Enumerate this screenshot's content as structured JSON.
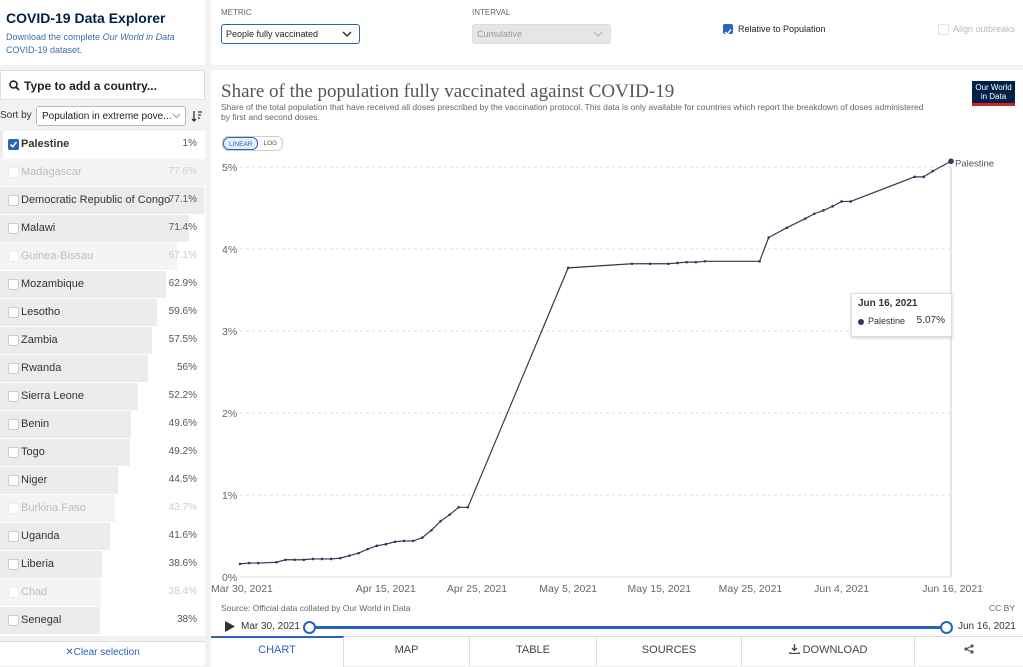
{
  "header": {
    "title": "COVID-19 Data Explorer",
    "subtitle_before": "Download the complete ",
    "subtitle_em": "Our World in Data",
    "subtitle_after": " COVID-19 dataset."
  },
  "search_placeholder": "Type to add a country...",
  "sort": {
    "label": "Sort by",
    "value": "Population in extreme pove..."
  },
  "countries": [
    {
      "name": "Palestine",
      "value": 1,
      "label": "1%",
      "checked": true,
      "available": true
    },
    {
      "name": "Madagascar",
      "value": 77.6,
      "label": "77.6%",
      "checked": false,
      "available": false
    },
    {
      "name": "Democratic Republic of Congo",
      "value": 77.1,
      "label": "77.1%",
      "checked": false,
      "available": true
    },
    {
      "name": "Malawi",
      "value": 71.4,
      "label": "71.4%",
      "checked": false,
      "available": true
    },
    {
      "name": "Guinea-Bissau",
      "value": 67.1,
      "label": "67.1%",
      "checked": false,
      "available": false
    },
    {
      "name": "Mozambique",
      "value": 62.9,
      "label": "62.9%",
      "checked": false,
      "available": true
    },
    {
      "name": "Lesotho",
      "value": 59.6,
      "label": "59.6%",
      "checked": false,
      "available": true
    },
    {
      "name": "Zambia",
      "value": 57.5,
      "label": "57.5%",
      "checked": false,
      "available": true
    },
    {
      "name": "Rwanda",
      "value": 56,
      "label": "56%",
      "checked": false,
      "available": true
    },
    {
      "name": "Sierra Leone",
      "value": 52.2,
      "label": "52.2%",
      "checked": false,
      "available": true
    },
    {
      "name": "Benin",
      "value": 49.6,
      "label": "49.6%",
      "checked": false,
      "available": true
    },
    {
      "name": "Togo",
      "value": 49.2,
      "label": "49.2%",
      "checked": false,
      "available": true
    },
    {
      "name": "Niger",
      "value": 44.5,
      "label": "44.5%",
      "checked": false,
      "available": true
    },
    {
      "name": "Burkina Faso",
      "value": 43.7,
      "label": "43.7%",
      "checked": false,
      "available": false
    },
    {
      "name": "Uganda",
      "value": 41.6,
      "label": "41.6%",
      "checked": false,
      "available": true
    },
    {
      "name": "Liberia",
      "value": 38.6,
      "label": "38.6%",
      "checked": false,
      "available": true
    },
    {
      "name": "Chad",
      "value": 38.4,
      "label": "38.4%",
      "checked": false,
      "available": false
    },
    {
      "name": "Senegal",
      "value": 38,
      "label": "38%",
      "checked": false,
      "available": true
    }
  ],
  "clear_selection": "Clear selection",
  "controls": {
    "metric_label": "METRIC",
    "metric_value": "People fully vaccinated",
    "interval_label": "INTERVAL",
    "interval_value": "Cumulative",
    "relative_label": "Relative to Population",
    "relative_checked": true,
    "align_label": "Align outbreaks"
  },
  "tabs": [
    "CHART",
    "MAP",
    "TABLE",
    "SOURCES",
    "DOWNLOAD"
  ],
  "chart_data": {
    "type": "line",
    "title": "Share of the population fully vaccinated against COVID-19",
    "subtitle": "Share of the total population that have received all doses prescribed by the vaccination protocol. This data is only available for countries which report the breakdown of doses administered by first and second doses.",
    "logo": [
      "Our World",
      "in Data"
    ],
    "scale_options": [
      "LINEAR",
      "LOG"
    ],
    "log_scale": false,
    "grid": true,
    "x": [
      "2021-03-30",
      "2021-03-31",
      "2021-04-01",
      "2021-04-03",
      "2021-04-04",
      "2021-04-05",
      "2021-04-06",
      "2021-04-07",
      "2021-04-08",
      "2021-04-09",
      "2021-04-10",
      "2021-04-11",
      "2021-04-12",
      "2021-04-13",
      "2021-04-14",
      "2021-04-15",
      "2021-04-16",
      "2021-04-17",
      "2021-04-18",
      "2021-04-19",
      "2021-04-20",
      "2021-04-21",
      "2021-04-22",
      "2021-04-23",
      "2021-04-24",
      "2021-05-05",
      "2021-05-12",
      "2021-05-14",
      "2021-05-16",
      "2021-05-17",
      "2021-05-18",
      "2021-05-19",
      "2021-05-20",
      "2021-05-26",
      "2021-05-27",
      "2021-05-29",
      "2021-05-31",
      "2021-06-01",
      "2021-06-02",
      "2021-06-03",
      "2021-06-04",
      "2021-06-05",
      "2021-06-12",
      "2021-06-13",
      "2021-06-14",
      "2021-06-16"
    ],
    "series": [
      {
        "name": "Palestine",
        "color": "#2e3b55",
        "values": [
          0.16,
          0.17,
          0.17,
          0.18,
          0.21,
          0.21,
          0.21,
          0.22,
          0.22,
          0.22,
          0.23,
          0.26,
          0.29,
          0.34,
          0.38,
          0.4,
          0.43,
          0.44,
          0.44,
          0.48,
          0.57,
          0.68,
          0.76,
          0.85,
          0.85,
          3.77,
          3.82,
          3.82,
          3.82,
          3.83,
          3.84,
          3.84,
          3.85,
          3.85,
          4.14,
          4.26,
          4.37,
          4.43,
          4.47,
          4.52,
          4.58,
          4.58,
          4.88,
          4.88,
          4.95,
          5.07
        ]
      }
    ],
    "xlim": [
      "2021-03-30",
      "2021-06-16"
    ],
    "xticks": [
      {
        "value": "2021-03-30",
        "label": "Mar 30, 2021"
      },
      {
        "value": "2021-04-15",
        "label": "Apr 15, 2021"
      },
      {
        "value": "2021-04-25",
        "label": "Apr 25, 2021"
      },
      {
        "value": "2021-05-05",
        "label": "May 5, 2021"
      },
      {
        "value": "2021-05-15",
        "label": "May 15, 2021"
      },
      {
        "value": "2021-05-25",
        "label": "May 25, 2021"
      },
      {
        "value": "2021-06-04",
        "label": "Jun 4, 2021"
      },
      {
        "value": "2021-06-16",
        "label": "Jun 16, 2021"
      }
    ],
    "ylim": [
      0,
      5
    ],
    "yticks": [
      {
        "value": 0,
        "label": "0%"
      },
      {
        "value": 1,
        "label": "1%"
      },
      {
        "value": 2,
        "label": "2%"
      },
      {
        "value": 3,
        "label": "3%"
      },
      {
        "value": 4,
        "label": "4%"
      },
      {
        "value": 5,
        "label": "5%"
      }
    ],
    "tooltip": {
      "title": "Jun 16, 2021",
      "name": "Palestine",
      "value_label": "5.07%"
    },
    "source": "Source: Official data collated by Our World in Data",
    "license": "CC BY",
    "timeline": {
      "start": "Mar 30, 2021",
      "end": "Jun 16, 2021"
    }
  }
}
